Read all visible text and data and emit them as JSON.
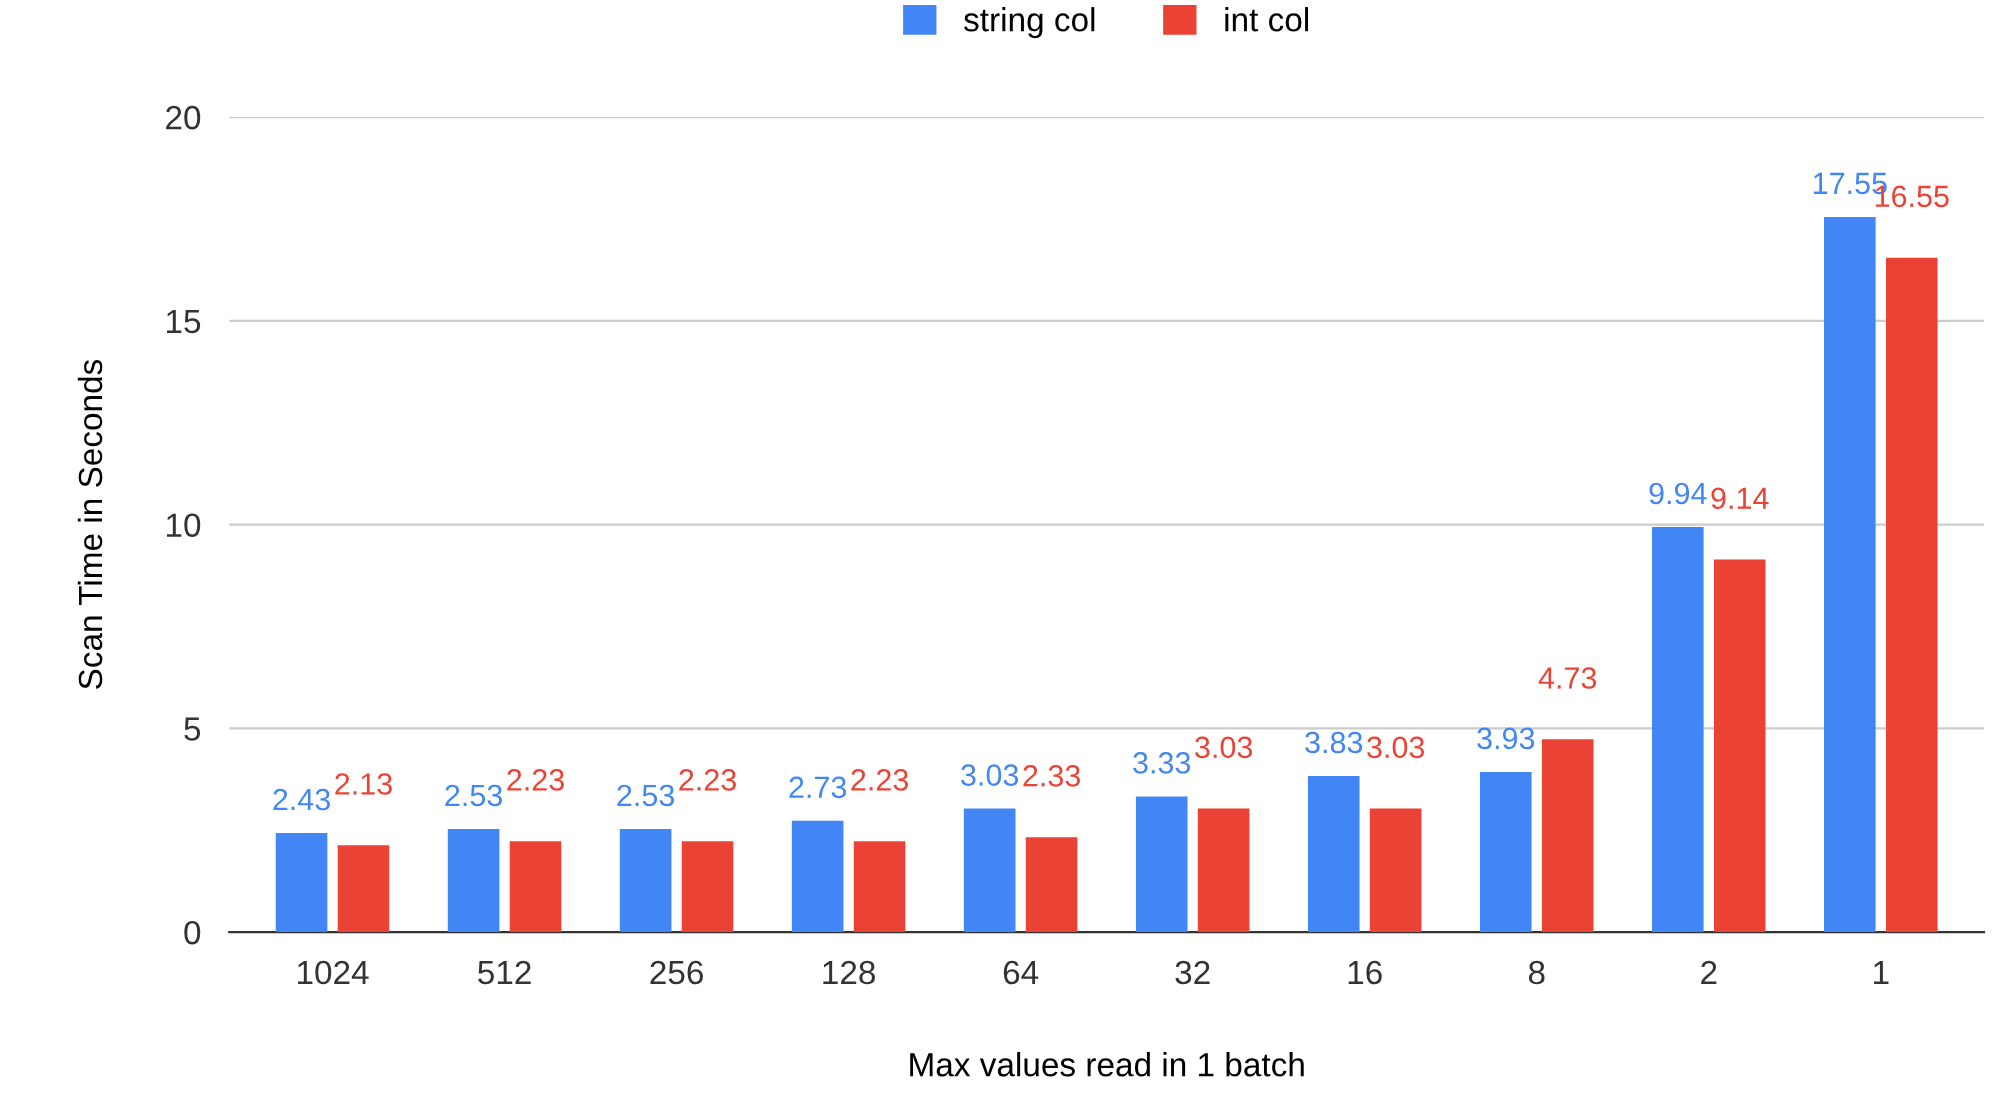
{
  "chart_data": {
    "type": "bar",
    "xlabel": "Max values read in 1 batch",
    "ylabel": "Scan Time in Seconds",
    "categories": [
      "1024",
      "512",
      "256",
      "128",
      "64",
      "32",
      "16",
      "8",
      "2",
      "1"
    ],
    "series": [
      {
        "name": "string col",
        "color": "#4285f4",
        "values": [
          2.43,
          2.53,
          2.53,
          2.73,
          3.03,
          3.33,
          3.83,
          3.93,
          9.94,
          17.55
        ]
      },
      {
        "name": "int col",
        "color": "#ea4335",
        "values": [
          2.13,
          2.23,
          2.23,
          2.23,
          2.33,
          3.03,
          3.03,
          4.73,
          9.14,
          16.55
        ]
      }
    ],
    "ylim": [
      0,
      20
    ],
    "yticks": [
      0,
      5,
      10,
      15,
      20
    ],
    "grid": "y",
    "legend": "top",
    "data_labels": true
  }
}
